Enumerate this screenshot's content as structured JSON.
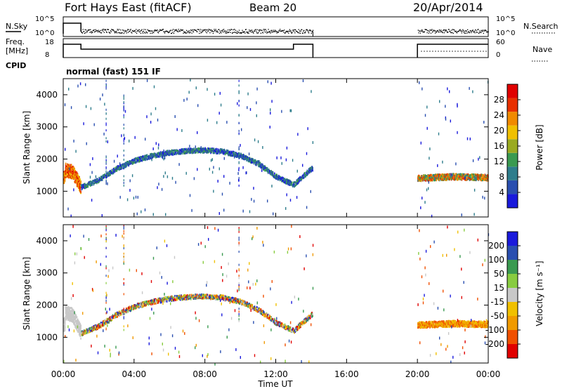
{
  "header": {
    "site": "Fort Hays East (fitACF)",
    "beam": "Beam 20",
    "date": "20/Apr/2014"
  },
  "top_panels": {
    "nsky_label": "N.Sky",
    "nsky_ticks": [
      "10^5",
      "10^0"
    ],
    "nsearch_label": "N.Search",
    "nsearch_ticks": [
      "10^5",
      "10^0"
    ],
    "freq_label": "Freq.",
    "freq_unit": "[MHz]",
    "freq_ticks": [
      "18",
      "8"
    ],
    "nave_label": "Nave",
    "nave_ticks": [
      "60",
      "0"
    ],
    "cpid_label": "CPID",
    "cpid_text": "normal (fast) 151 IF"
  },
  "colors": {
    "power_scale": [
      "#1a1adc",
      "#2a4fb0",
      "#2e7d8c",
      "#3a9a50",
      "#9aaa20",
      "#f0c000",
      "#f08a00",
      "#e83000",
      "#e00000"
    ],
    "velocity_scale": [
      "#e00000",
      "#f05000",
      "#f09a00",
      "#f0c000",
      "#c8c8c8",
      "#88cc40",
      "#3a9a50",
      "#2a4fb0",
      "#1a1adc"
    ]
  },
  "chart_data": [
    {
      "type": "heatmap",
      "panel": "power",
      "ylabel": "Slant Range [km]",
      "yticks": [
        "1000",
        "2000",
        "3000",
        "4000"
      ],
      "ylim": [
        200,
        4500
      ],
      "xlim": [
        0,
        24
      ],
      "colorbar_label": "Power [dB]",
      "colorbar_ticks": [
        "4",
        "8",
        "12",
        "16",
        "20",
        "24",
        "28"
      ],
      "colorbar_range": [
        0,
        32
      ],
      "band": [
        [
          0.1,
          1650
        ],
        [
          0.5,
          1600
        ],
        [
          1,
          1120
        ],
        [
          2,
          1350
        ],
        [
          3,
          1700
        ],
        [
          4,
          1950
        ],
        [
          5,
          2100
        ],
        [
          6,
          2200
        ],
        [
          7,
          2250
        ],
        [
          8,
          2270
        ],
        [
          9,
          2230
        ],
        [
          10,
          2100
        ],
        [
          11,
          1850
        ],
        [
          12,
          1450
        ],
        [
          13,
          1200
        ],
        [
          14,
          1700
        ],
        [
          20,
          1400
        ],
        [
          22,
          1450
        ],
        [
          24,
          1420
        ]
      ],
      "gaps": [
        [
          14.1,
          20.0
        ]
      ]
    },
    {
      "type": "heatmap",
      "panel": "velocity",
      "ylabel": "Slant Range [km]",
      "yticks": [
        "1000",
        "2000",
        "3000",
        "4000"
      ],
      "ylim": [
        200,
        4500
      ],
      "xlim": [
        0,
        24
      ],
      "colorbar_label": "Velocity [m s⁻¹]",
      "colorbar_ticks": [
        "200",
        "100",
        "50",
        "15",
        "-15",
        "-50",
        "-100",
        "-200"
      ],
      "colorbar_range": [
        -250,
        250
      ],
      "band": [
        [
          0.1,
          1750
        ],
        [
          0.5,
          1700
        ],
        [
          1,
          1120
        ],
        [
          2,
          1350
        ],
        [
          3,
          1700
        ],
        [
          4,
          1950
        ],
        [
          5,
          2100
        ],
        [
          6,
          2200
        ],
        [
          7,
          2250
        ],
        [
          8,
          2270
        ],
        [
          9,
          2230
        ],
        [
          10,
          2100
        ],
        [
          11,
          1850
        ],
        [
          12,
          1450
        ],
        [
          13,
          1200
        ],
        [
          14,
          1700
        ],
        [
          20,
          1380
        ],
        [
          22,
          1420
        ],
        [
          24,
          1400
        ]
      ],
      "gaps": [
        [
          14.1,
          20.0
        ]
      ]
    }
  ],
  "time_axis": {
    "ticks": [
      "00:00",
      "04:00",
      "08:00",
      "12:00",
      "16:00",
      "20:00",
      "00:00"
    ],
    "label": "Time UT"
  }
}
